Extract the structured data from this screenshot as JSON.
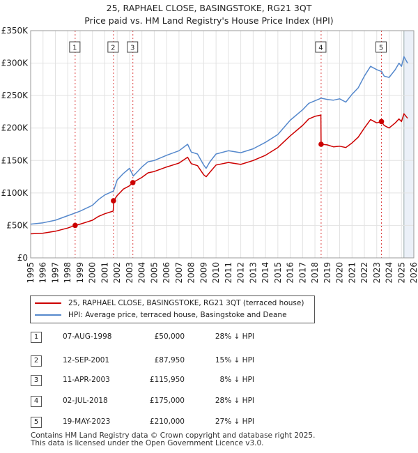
{
  "title_line1": "25, RAPHAEL CLOSE, BASINGSTOKE, RG21 3QT",
  "title_line2": "Price paid vs. HM Land Registry's House Price Index (HPI)",
  "colors": {
    "property": "#cc0000",
    "hpi": "#5588cc",
    "marker_line": "#dd4444",
    "shade": "#dde6f4"
  },
  "legend": {
    "property_label": "25, RAPHAEL CLOSE, BASINGSTOKE, RG21 3QT (terraced house)",
    "hpi_label": "HPI: Average price, terraced house, Basingstoke and Deane"
  },
  "transactions": [
    {
      "num": "1",
      "date": "07-AUG-1998",
      "price": "£50,000",
      "hpi_diff": "28% ↓ HPI"
    },
    {
      "num": "2",
      "date": "12-SEP-2001",
      "price": "£87,950",
      "hpi_diff": "15% ↓ HPI"
    },
    {
      "num": "3",
      "date": "11-APR-2003",
      "price": "£115,950",
      "hpi_diff": "8% ↓ HPI"
    },
    {
      "num": "4",
      "date": "02-JUL-2018",
      "price": "£175,000",
      "hpi_diff": "28% ↓ HPI"
    },
    {
      "num": "5",
      "date": "19-MAY-2023",
      "price": "£210,000",
      "hpi_diff": "27% ↓ HPI"
    }
  ],
  "footer_line1": "Contains HM Land Registry data © Crown copyright and database right 2025.",
  "footer_line2": "This data is licensed under the Open Government Licence v3.0.",
  "chart_data": {
    "type": "line",
    "title": "25, RAPHAEL CLOSE, BASINGSTOKE, RG21 3QT",
    "subtitle": "Price paid vs. HM Land Registry's House Price Index (HPI)",
    "xlabel": "",
    "ylabel": "",
    "xlim": [
      1995,
      2026
    ],
    "ylim": [
      0,
      350000
    ],
    "yticks": [
      0,
      50000,
      100000,
      150000,
      200000,
      250000,
      300000,
      350000
    ],
    "ytick_labels": [
      "£0",
      "£50K",
      "£100K",
      "£150K",
      "£200K",
      "£250K",
      "£300K",
      "£350K"
    ],
    "xticks": [
      1995,
      1996,
      1997,
      1998,
      1999,
      2000,
      2001,
      2002,
      2003,
      2004,
      2005,
      2006,
      2007,
      2008,
      2009,
      2010,
      2011,
      2012,
      2013,
      2014,
      2015,
      2016,
      2017,
      2018,
      2019,
      2020,
      2021,
      2022,
      2023,
      2024,
      2025,
      2026
    ],
    "xtick_labels": [
      "1995",
      "1996",
      "1997",
      "1998",
      "1999",
      "2000",
      "2001",
      "2002",
      "2003",
      "2004",
      "2005",
      "2006",
      "2007",
      "2008",
      "2009",
      "2010",
      "2011",
      "2012",
      "2013",
      "2014",
      "2015",
      "2016",
      "2017",
      "2018",
      "2019",
      "2020",
      "2021",
      "2022",
      "2023",
      "2024",
      "2025",
      "2026"
    ],
    "forecast_from": 2025.2,
    "grid": true,
    "series": [
      {
        "name": "HPI: Average price, terraced house, Basingstoke and Deane",
        "x": [
          1995.0,
          1996.0,
          1997.0,
          1998.0,
          1998.6,
          1999.0,
          2000.0,
          2000.5,
          2001.0,
          2001.7,
          2002.0,
          2002.5,
          2003.0,
          2003.3,
          2004.0,
          2004.5,
          2005.0,
          2006.0,
          2007.0,
          2007.7,
          2008.0,
          2008.5,
          2009.0,
          2009.2,
          2009.5,
          2010.0,
          2011.0,
          2012.0,
          2013.0,
          2014.0,
          2015.0,
          2016.0,
          2017.0,
          2017.5,
          2018.0,
          2018.5,
          2019.0,
          2019.5,
          2020.0,
          2020.5,
          2021.0,
          2021.5,
          2022.0,
          2022.5,
          2023.0,
          2023.4,
          2023.6,
          2024.0,
          2024.5,
          2024.8,
          2025.0,
          2025.2,
          2025.5
        ],
        "values": [
          52000,
          54000,
          58000,
          65000,
          69000,
          72000,
          81000,
          90000,
          97000,
          103000,
          120000,
          130000,
          138000,
          126000,
          140000,
          148000,
          150000,
          158000,
          165000,
          175000,
          163000,
          160000,
          143000,
          138000,
          148000,
          160000,
          165000,
          162000,
          168000,
          178000,
          190000,
          212000,
          228000,
          238000,
          242000,
          246000,
          244000,
          243000,
          245000,
          240000,
          252000,
          262000,
          280000,
          295000,
          290000,
          287000,
          280000,
          278000,
          290000,
          300000,
          295000,
          310000,
          300000
        ]
      },
      {
        "name": "25, RAPHAEL CLOSE, BASINGSTOKE, RG21 3QT (terraced house)",
        "x": [
          1995.0,
          1996.0,
          1997.0,
          1998.0,
          1998.6,
          1999.0,
          2000.0,
          2000.5,
          2001.0,
          2001.68,
          2001.72,
          2002.0,
          2002.5,
          2003.0,
          2003.27,
          2004.0,
          2004.5,
          2005.0,
          2006.0,
          2007.0,
          2007.7,
          2008.0,
          2008.5,
          2009.0,
          2009.2,
          2009.5,
          2010.0,
          2011.0,
          2012.0,
          2013.0,
          2014.0,
          2015.0,
          2016.0,
          2017.0,
          2017.5,
          2018.0,
          2018.48,
          2018.5,
          2019.0,
          2019.5,
          2020.0,
          2020.5,
          2021.0,
          2021.5,
          2022.0,
          2022.5,
          2023.0,
          2023.38,
          2023.6,
          2024.0,
          2024.5,
          2024.8,
          2025.0,
          2025.2,
          2025.5
        ],
        "values": [
          37000,
          38000,
          41000,
          46000,
          50000,
          52000,
          58000,
          64000,
          68000,
          72000,
          87950,
          96000,
          106000,
          111000,
          115950,
          124000,
          131000,
          133000,
          140000,
          146000,
          155000,
          145000,
          142000,
          128000,
          125000,
          132000,
          143000,
          147000,
          144000,
          150000,
          158000,
          170000,
          188000,
          204000,
          214000,
          218000,
          220000,
          175000,
          174000,
          171000,
          172000,
          170000,
          177000,
          186000,
          200000,
          213000,
          208000,
          210000,
          204000,
          200000,
          208000,
          214000,
          210000,
          222000,
          215000
        ]
      }
    ],
    "transactions": [
      {
        "label": "1",
        "x": 1998.6,
        "value": 50000
      },
      {
        "label": "2",
        "x": 2001.7,
        "value": 87950
      },
      {
        "label": "3",
        "x": 2003.27,
        "value": 115950
      },
      {
        "label": "4",
        "x": 2018.5,
        "value": 175000
      },
      {
        "label": "5",
        "x": 2023.38,
        "value": 210000
      }
    ]
  }
}
